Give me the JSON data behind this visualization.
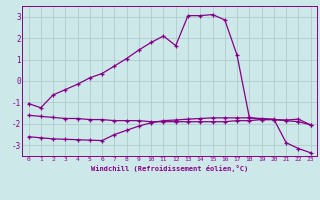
{
  "xlabel": "Windchill (Refroidissement éolien,°C)",
  "background_color": "#cce8e8",
  "grid_color": "#b8d8d8",
  "line_color": "#880088",
  "x_values": [
    0,
    1,
    2,
    3,
    4,
    5,
    6,
    7,
    8,
    9,
    10,
    11,
    12,
    13,
    14,
    15,
    16,
    17,
    18,
    19,
    20,
    21,
    22,
    23
  ],
  "series1": [
    -1.05,
    -1.25,
    -0.65,
    -0.4,
    -0.15,
    0.15,
    0.35,
    0.7,
    1.05,
    1.45,
    1.8,
    2.1,
    1.65,
    3.05,
    3.05,
    3.1,
    2.85,
    1.2,
    -1.7,
    -1.8,
    -1.8,
    -1.85,
    -1.9,
    -2.05
  ],
  "series2": [
    -1.6,
    -1.65,
    -1.7,
    -1.75,
    -1.75,
    -1.8,
    -1.8,
    -1.85,
    -1.85,
    -1.85,
    -1.9,
    -1.9,
    -1.9,
    -1.9,
    -1.9,
    -1.9,
    -1.9,
    -1.85,
    -1.85,
    -1.8,
    -1.8,
    -1.82,
    -1.78,
    -2.05
  ],
  "series3": [
    -2.6,
    -2.65,
    -2.7,
    -2.72,
    -2.74,
    -2.76,
    -2.78,
    -2.5,
    -2.3,
    -2.1,
    -1.95,
    -1.85,
    -1.82,
    -1.78,
    -1.75,
    -1.72,
    -1.72,
    -1.72,
    -1.72,
    -1.75,
    -1.78,
    -2.88,
    -3.15,
    -3.35
  ],
  "ylim": [
    -3.5,
    3.5
  ],
  "yticks": [
    -3,
    -2,
    -1,
    0,
    1,
    2,
    3
  ]
}
